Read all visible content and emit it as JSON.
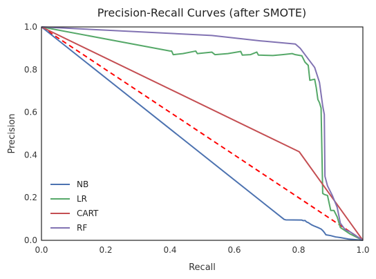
{
  "chart_data": {
    "type": "line",
    "title": "Precision-Recall Curves (after SMOTE)",
    "xlabel": "Recall",
    "ylabel": "Precision",
    "xlim": [
      0.0,
      1.0
    ],
    "ylim": [
      0.0,
      1.0
    ],
    "xticks": [
      "0.0",
      "0.2",
      "0.4",
      "0.6",
      "0.8",
      "1.0"
    ],
    "yticks": [
      "0.0",
      "0.2",
      "0.4",
      "0.6",
      "0.8",
      "1.0"
    ],
    "grid": false,
    "legend_position": "lower-left",
    "series": [
      {
        "name": "NB",
        "color": "#4c72b0",
        "points": [
          [
            0.0,
            1.0
          ],
          [
            0.755,
            0.098
          ],
          [
            0.76,
            0.096
          ],
          [
            0.81,
            0.095
          ],
          [
            0.815,
            0.092
          ],
          [
            0.82,
            0.093
          ],
          [
            0.825,
            0.086
          ],
          [
            0.83,
            0.083
          ],
          [
            0.84,
            0.073
          ],
          [
            0.85,
            0.066
          ],
          [
            0.86,
            0.06
          ],
          [
            0.87,
            0.053
          ],
          [
            0.875,
            0.046
          ],
          [
            0.88,
            0.037
          ],
          [
            0.885,
            0.026
          ],
          [
            0.9,
            0.022
          ],
          [
            0.915,
            0.016
          ],
          [
            0.93,
            0.013
          ],
          [
            0.94,
            0.01
          ],
          [
            0.955,
            0.006
          ],
          [
            0.97,
            0.004
          ],
          [
            1.0,
            0.0
          ]
        ]
      },
      {
        "name": "LR",
        "color": "#55a868",
        "points": [
          [
            0.0,
            1.0
          ],
          [
            0.4,
            0.887
          ],
          [
            0.405,
            0.887
          ],
          [
            0.41,
            0.87
          ],
          [
            0.44,
            0.875
          ],
          [
            0.48,
            0.887
          ],
          [
            0.485,
            0.875
          ],
          [
            0.53,
            0.882
          ],
          [
            0.54,
            0.87
          ],
          [
            0.58,
            0.875
          ],
          [
            0.62,
            0.885
          ],
          [
            0.625,
            0.868
          ],
          [
            0.65,
            0.87
          ],
          [
            0.67,
            0.882
          ],
          [
            0.675,
            0.868
          ],
          [
            0.72,
            0.866
          ],
          [
            0.75,
            0.87
          ],
          [
            0.78,
            0.875
          ],
          [
            0.79,
            0.87
          ],
          [
            0.81,
            0.865
          ],
          [
            0.815,
            0.85
          ],
          [
            0.82,
            0.835
          ],
          [
            0.83,
            0.82
          ],
          [
            0.835,
            0.75
          ],
          [
            0.85,
            0.755
          ],
          [
            0.855,
            0.715
          ],
          [
            0.86,
            0.66
          ],
          [
            0.865,
            0.645
          ],
          [
            0.87,
            0.62
          ],
          [
            0.875,
            0.22
          ],
          [
            0.88,
            0.215
          ],
          [
            0.89,
            0.21
          ],
          [
            0.9,
            0.14
          ],
          [
            0.91,
            0.14
          ],
          [
            0.92,
            0.11
          ],
          [
            0.93,
            0.06
          ],
          [
            0.94,
            0.05
          ],
          [
            0.95,
            0.04
          ],
          [
            0.96,
            0.03
          ],
          [
            1.0,
            0.0
          ]
        ]
      },
      {
        "name": "CART",
        "color": "#c44e52",
        "points": [
          [
            0.0,
            1.0
          ],
          [
            0.802,
            0.415
          ],
          [
            1.0,
            0.0
          ]
        ]
      },
      {
        "name": "RF",
        "color": "#8172b2",
        "points": [
          [
            0.0,
            1.0
          ],
          [
            0.53,
            0.96
          ],
          [
            0.68,
            0.935
          ],
          [
            0.79,
            0.92
          ],
          [
            0.805,
            0.9
          ],
          [
            0.82,
            0.87
          ],
          [
            0.85,
            0.81
          ],
          [
            0.865,
            0.74
          ],
          [
            0.875,
            0.63
          ],
          [
            0.88,
            0.59
          ],
          [
            0.882,
            0.3
          ],
          [
            0.89,
            0.255
          ],
          [
            0.905,
            0.21
          ],
          [
            0.92,
            0.155
          ],
          [
            0.93,
            0.08
          ],
          [
            0.945,
            0.05
          ],
          [
            0.96,
            0.04
          ],
          [
            1.0,
            0.0
          ]
        ]
      }
    ],
    "baseline": {
      "color": "#ff0000",
      "points": [
        [
          0.0,
          1.0
        ],
        [
          1.0,
          0.0
        ]
      ]
    }
  }
}
